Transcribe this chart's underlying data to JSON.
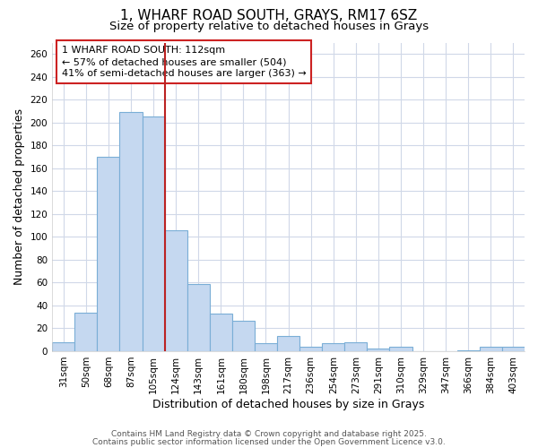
{
  "title_line1": "1, WHARF ROAD SOUTH, GRAYS, RM17 6SZ",
  "title_line2": "Size of property relative to detached houses in Grays",
  "xlabel": "Distribution of detached houses by size in Grays",
  "ylabel": "Number of detached properties",
  "categories": [
    "31sqm",
    "50sqm",
    "68sqm",
    "87sqm",
    "105sqm",
    "124sqm",
    "143sqm",
    "161sqm",
    "180sqm",
    "198sqm",
    "217sqm",
    "236sqm",
    "254sqm",
    "273sqm",
    "291sqm",
    "310sqm",
    "329sqm",
    "347sqm",
    "366sqm",
    "384sqm",
    "403sqm"
  ],
  "values": [
    8,
    34,
    170,
    209,
    205,
    106,
    59,
    33,
    27,
    7,
    13,
    4,
    7,
    8,
    2,
    4,
    0,
    0,
    1,
    4,
    4
  ],
  "bar_color": "#c5d8f0",
  "bar_edge_color": "#7aaed6",
  "vline_x_index": 4.5,
  "vline_color": "#bb2222",
  "annotation_text_line1": "1 WHARF ROAD SOUTH: 112sqm",
  "annotation_text_line2": "← 57% of detached houses are smaller (504)",
  "annotation_text_line3": "41% of semi-detached houses are larger (363) →",
  "box_edgecolor": "#cc2222",
  "ylim": [
    0,
    270
  ],
  "yticks": [
    0,
    20,
    40,
    60,
    80,
    100,
    120,
    140,
    160,
    180,
    200,
    220,
    240,
    260
  ],
  "background_color": "#ffffff",
  "plot_bg_color": "#ffffff",
  "grid_color": "#d0d8e8",
  "footer_line1": "Contains HM Land Registry data © Crown copyright and database right 2025.",
  "footer_line2": "Contains public sector information licensed under the Open Government Licence v3.0.",
  "title_fontsize": 11,
  "subtitle_fontsize": 9.5,
  "axis_label_fontsize": 9,
  "tick_fontsize": 7.5,
  "footer_fontsize": 6.5,
  "annotation_fontsize": 8
}
